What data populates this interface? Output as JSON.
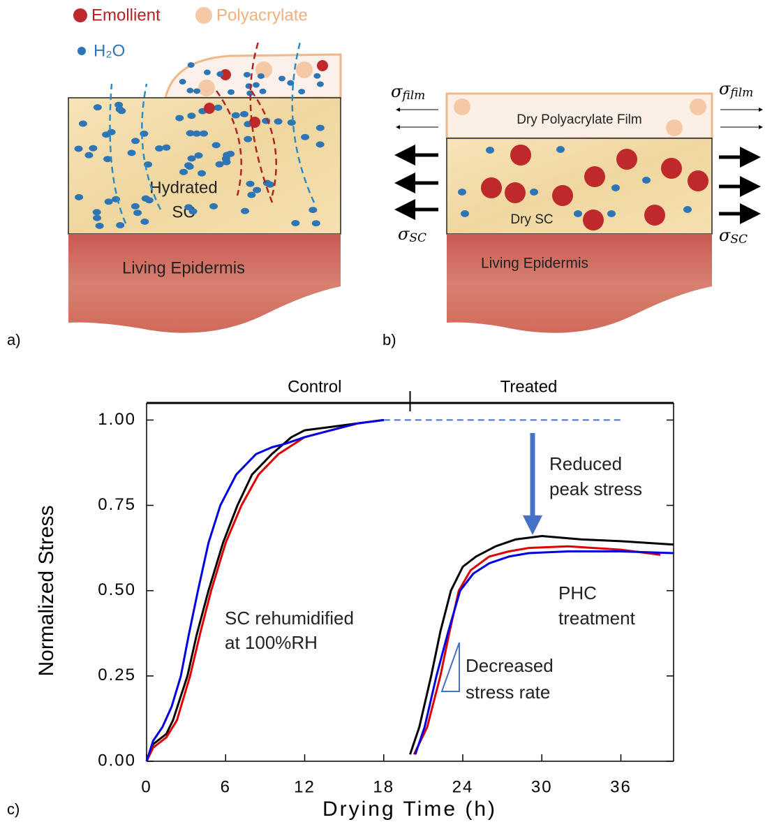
{
  "diagram_a": {
    "label": "a)",
    "legend": [
      "Emollient",
      "Polyacrylate",
      "H₂O"
    ],
    "layer_sc": [
      "Hydrated",
      "SC"
    ],
    "layer_epidermis": "Living Epidermis"
  },
  "diagram_b": {
    "label": "b)",
    "film": "Dry Polyacrylate Film",
    "layer_sc": "Dry SC",
    "layer_epidermis": "Living Epidermis",
    "stress_film": {
      "symbol": "σ",
      "subscript": "film"
    },
    "stress_sc": {
      "symbol": "σ",
      "subscript": "SC"
    }
  },
  "chart_data": {
    "type": "line",
    "label": "c)",
    "xlabel": "Drying Time (h)",
    "ylabel": "Normalized Stress",
    "xlim": [
      0,
      40
    ],
    "ylim": [
      0,
      1.05
    ],
    "xticks": [
      0,
      6,
      12,
      18,
      24,
      30,
      36
    ],
    "yticks": [
      {
        "value": 0,
        "label": "0.00"
      },
      {
        "value": 0.25,
        "label": "0.25"
      },
      {
        "value": 0.5,
        "label": "0.50"
      },
      {
        "value": 0.75,
        "label": "0.75"
      },
      {
        "value": 1,
        "label": "1.00"
      }
    ],
    "top_labels": [
      "Control",
      "Treated"
    ],
    "top_divider": 20,
    "reference_line": {
      "x": [
        18,
        36
      ],
      "y": 1
    },
    "annotations": [
      [
        "Reduced",
        "peak stress"
      ],
      [
        "SC rehumidified",
        "at 100%RH"
      ],
      [
        "PHC",
        "treatment"
      ],
      [
        "Decreased",
        "stress rate"
      ]
    ],
    "series": [
      {
        "color": "#000000",
        "x": [
          0,
          0.5,
          1.5,
          2,
          3.1,
          3.8,
          4.7,
          5.8,
          6.9,
          8,
          9.5,
          11,
          12,
          14,
          16,
          18
        ],
        "values": [
          0,
          0.05,
          0.08,
          0.12,
          0.25,
          0.37,
          0.5,
          0.64,
          0.75,
          0.84,
          0.9,
          0.95,
          0.97,
          0.98,
          0.99,
          1
        ]
      },
      {
        "color": "#e00000",
        "x": [
          0,
          0.5,
          1.5,
          2.3,
          3.3,
          4.1,
          4.9,
          6,
          7.2,
          8.5,
          10,
          12,
          14,
          16,
          18
        ],
        "values": [
          0,
          0.04,
          0.07,
          0.12,
          0.25,
          0.38,
          0.5,
          0.64,
          0.75,
          0.84,
          0.9,
          0.95,
          0.97,
          0.99,
          1
        ]
      },
      {
        "color": "#0000e0",
        "x": [
          0,
          0.5,
          1.2,
          1.9,
          2.6,
          3.2,
          3.9,
          4.7,
          5.6,
          6.8,
          8.3,
          9.5,
          10.5,
          12,
          14,
          16,
          18
        ],
        "values": [
          0,
          0.06,
          0.1,
          0.16,
          0.25,
          0.37,
          0.5,
          0.64,
          0.75,
          0.84,
          0.9,
          0.92,
          0.93,
          0.95,
          0.97,
          0.99,
          1
        ]
      },
      {
        "color": "#000000",
        "x": [
          20,
          20.7,
          21.6,
          22.3,
          23.1,
          24,
          25,
          26.5,
          28,
          30,
          33,
          36,
          40
        ],
        "values": [
          0.02,
          0.1,
          0.25,
          0.38,
          0.5,
          0.57,
          0.6,
          0.63,
          0.65,
          0.66,
          0.65,
          0.645,
          0.635
        ]
      },
      {
        "color": "#e00000",
        "x": [
          20.3,
          21.3,
          22.3,
          23,
          23.7,
          24.6,
          26,
          27.5,
          29,
          32,
          36,
          39
        ],
        "values": [
          0.02,
          0.1,
          0.25,
          0.38,
          0.5,
          0.56,
          0.6,
          0.615,
          0.625,
          0.63,
          0.62,
          0.605
        ]
      },
      {
        "color": "#0000e0",
        "x": [
          20.4,
          21.1,
          22,
          22.9,
          23.8,
          24.8,
          26,
          27.5,
          29,
          32,
          36,
          40
        ],
        "values": [
          0.02,
          0.1,
          0.25,
          0.38,
          0.5,
          0.55,
          0.58,
          0.6,
          0.61,
          0.615,
          0.615,
          0.61
        ]
      }
    ]
  }
}
